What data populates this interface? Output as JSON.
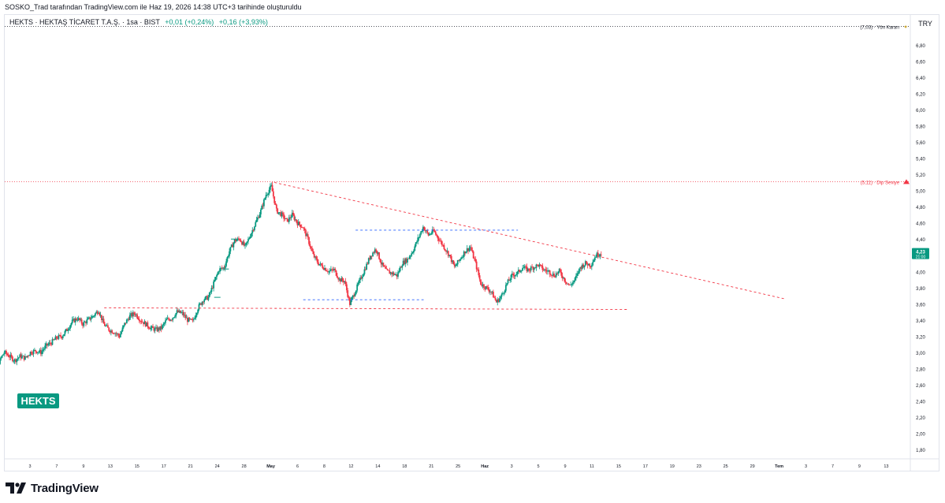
{
  "header": {
    "attribution": "SOSKO_Trad tarafından TradingView.com ile Haz 19, 2026 14:38 UTC+3 tarihinde oluşturuldu"
  },
  "legend": {
    "symbol": "HEKTS · HEKTAŞ TİCARET T.A.Ş. · 1sa · BIST",
    "change_abs": "+0,01 (+0,24%)",
    "change_session": "+0,16 (+3,93%)"
  },
  "currency": "TRY",
  "watermark": "HEKTS",
  "brand": "TradingView",
  "colors": {
    "up": "#089981",
    "down": "#f23645",
    "grid": "#e0e3eb",
    "trend": "#f23645",
    "support": "#f23645",
    "range": "#2962ff"
  },
  "chart_data": {
    "type": "candlestick",
    "title": "",
    "y_axis": {
      "min": 1.7,
      "max": 7.0,
      "ticks": [
        "1,80",
        "2,00",
        "2,20",
        "2,40",
        "2,60",
        "2,80",
        "3,00",
        "3,20",
        "3,40",
        "3,60",
        "3,80",
        "4,00",
        "4,20",
        "4,40",
        "4,60",
        "4,80",
        "5,00",
        "5,20",
        "5,40",
        "5,60",
        "5,80",
        "6,00",
        "6,20",
        "6,40",
        "6,60",
        "6,80"
      ]
    },
    "x_axis": {
      "ticks": [
        "3",
        "7",
        "9",
        "13",
        "15",
        "17",
        "21",
        "24",
        "28",
        "May",
        "6",
        "8",
        "12",
        "14",
        "18",
        "21",
        "25",
        "Haz",
        "3",
        "5",
        "9",
        "11",
        "15",
        "17",
        "19",
        "23",
        "25",
        "29",
        "Tem",
        "3",
        "7",
        "9",
        "13"
      ]
    },
    "last_price": {
      "label": "4,23",
      "time": "21:00",
      "value": 4.23
    },
    "annotations": [
      {
        "label": "(7,03) · Yön Kararı",
        "value": 7.03
      },
      {
        "label": "(5,11) · Dip Seviye",
        "value": 5.11
      }
    ],
    "close_path": [
      [
        0,
        2.92
      ],
      [
        2,
        2.91
      ],
      [
        4,
        2.93
      ],
      [
        5,
        2.88
      ],
      [
        6,
        3.0
      ],
      [
        7,
        2.95
      ],
      [
        8,
        2.9
      ],
      [
        9,
        2.95
      ],
      [
        10,
        2.93
      ],
      [
        11,
        3.0
      ],
      [
        12,
        3.02
      ],
      [
        13,
        3.0
      ],
      [
        14,
        3.08
      ],
      [
        15,
        3.12
      ],
      [
        16,
        3.18
      ],
      [
        17,
        3.2
      ],
      [
        18,
        3.28
      ],
      [
        19,
        3.38
      ],
      [
        20,
        3.42
      ],
      [
        21,
        3.35
      ],
      [
        22,
        3.4
      ],
      [
        23,
        3.45
      ],
      [
        24,
        3.52
      ],
      [
        25,
        3.35
      ],
      [
        26,
        3.28
      ],
      [
        27,
        3.25
      ],
      [
        28,
        3.2
      ],
      [
        29,
        3.35
      ],
      [
        30,
        3.45
      ],
      [
        31,
        3.48
      ],
      [
        32,
        3.4
      ],
      [
        33,
        3.35
      ],
      [
        34,
        3.3
      ],
      [
        35,
        3.28
      ],
      [
        36,
        3.3
      ],
      [
        37,
        3.4
      ],
      [
        38,
        3.42
      ],
      [
        39,
        3.5
      ],
      [
        40,
        3.48
      ],
      [
        41,
        3.4
      ],
      [
        42,
        3.38
      ],
      [
        43,
        3.55
      ],
      [
        44,
        3.65
      ],
      [
        45,
        3.68
      ],
      [
        46,
        3.85
      ],
      [
        47,
        4.02
      ],
      [
        48,
        4.05
      ],
      [
        49,
        4.25
      ],
      [
        50,
        4.38
      ],
      [
        51,
        4.4
      ],
      [
        52,
        4.3
      ],
      [
        53,
        4.45
      ],
      [
        54,
        4.6
      ],
      [
        55,
        4.75
      ],
      [
        56,
        4.95
      ],
      [
        57,
        5.05
      ],
      [
        58,
        4.75
      ],
      [
        59,
        4.7
      ],
      [
        60,
        4.62
      ],
      [
        61,
        4.7
      ],
      [
        62,
        4.6
      ],
      [
        63,
        4.55
      ],
      [
        64,
        4.4
      ],
      [
        65,
        4.2
      ],
      [
        66,
        4.1
      ],
      [
        67,
        4.05
      ],
      [
        68,
        4.0
      ],
      [
        69,
        4.02
      ],
      [
        70,
        3.9
      ],
      [
        71,
        3.88
      ],
      [
        72,
        3.6
      ],
      [
        73,
        3.75
      ],
      [
        74,
        3.9
      ],
      [
        75,
        4.05
      ],
      [
        76,
        4.2
      ],
      [
        77,
        4.28
      ],
      [
        78,
        4.1
      ],
      [
        79,
        4.0
      ],
      [
        80,
        3.98
      ],
      [
        81,
        3.95
      ],
      [
        82,
        4.1
      ],
      [
        83,
        4.15
      ],
      [
        84,
        4.25
      ],
      [
        85,
        4.4
      ],
      [
        86,
        4.55
      ],
      [
        87,
        4.45
      ],
      [
        88,
        4.5
      ],
      [
        89,
        4.4
      ],
      [
        90,
        4.3
      ],
      [
        91,
        4.2
      ],
      [
        92,
        4.05
      ],
      [
        93,
        4.15
      ],
      [
        94,
        4.25
      ],
      [
        95,
        4.3
      ],
      [
        96,
        4.1
      ],
      [
        97,
        3.85
      ],
      [
        98,
        3.8
      ],
      [
        99,
        3.75
      ],
      [
        100,
        3.62
      ],
      [
        101,
        3.7
      ],
      [
        102,
        3.85
      ],
      [
        103,
        3.95
      ],
      [
        104,
        3.98
      ],
      [
        105,
        4.05
      ],
      [
        106,
        4.02
      ],
      [
        107,
        4.05
      ],
      [
        108,
        4.08
      ],
      [
        109,
        4.02
      ],
      [
        110,
        4.0
      ],
      [
        111,
        3.95
      ],
      [
        112,
        4.0
      ],
      [
        113,
        3.9
      ],
      [
        114,
        3.82
      ],
      [
        115,
        3.9
      ],
      [
        116,
        4.05
      ],
      [
        117,
        4.1
      ],
      [
        118,
        4.08
      ],
      [
        119,
        4.2
      ],
      [
        120,
        4.23
      ]
    ],
    "drawings": [
      {
        "kind": "trendline",
        "from": [
          57.5,
          5.1
        ],
        "to": [
          155,
          3.66
        ]
      },
      {
        "kind": "support",
        "from": [
          25,
          3.55
        ],
        "to": [
          125,
          3.53
        ]
      },
      {
        "kind": "range",
        "from": [
          73,
          4.51
        ],
        "to": [
          104,
          4.51
        ]
      },
      {
        "kind": "range",
        "from": [
          63,
          3.65
        ],
        "to": [
          86,
          3.65
        ]
      },
      {
        "kind": "level",
        "value": 5.11
      },
      {
        "kind": "level",
        "value": 7.03
      }
    ]
  }
}
